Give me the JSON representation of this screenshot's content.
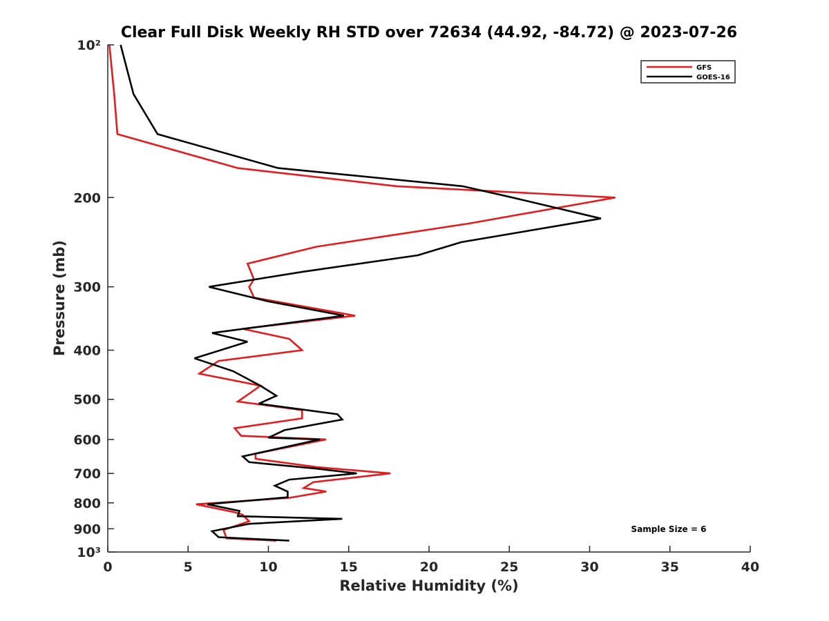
{
  "chart_data": {
    "type": "line",
    "title": "Clear Full Disk Weekly RH STD over 72634 (44.92, -84.72) @ 2023-07-26",
    "xlabel": "Relative Humidity (%)",
    "ylabel": "Pressure (mb)",
    "xlim": [
      0,
      40
    ],
    "ylim": [
      100,
      1000
    ],
    "yscale": "log",
    "y_reversed": true,
    "grid": false,
    "x_ticks": [
      0,
      5,
      10,
      15,
      20,
      25,
      30,
      35,
      40
    ],
    "x_tick_labels": [
      "0",
      "5",
      "10",
      "15",
      "20",
      "25",
      "30",
      "35",
      "40"
    ],
    "y_ticks": [
      100,
      200,
      300,
      400,
      500,
      600,
      700,
      800,
      900,
      1000
    ],
    "y_tick_labels": [
      "10²",
      "200",
      "300",
      "400",
      "500",
      "600",
      "700",
      "800",
      "900",
      "10³"
    ],
    "legend_position": "top-right",
    "annotation": "Sample Size = 6",
    "series": [
      {
        "name": "GFS",
        "color": "#e41a1c",
        "points": [
          [
            0.1,
            100
          ],
          [
            0.4,
            125
          ],
          [
            0.6,
            150
          ],
          [
            8.1,
            175
          ],
          [
            18.0,
            190
          ],
          [
            31.6,
            200
          ],
          [
            22.5,
            225
          ],
          [
            13.0,
            250
          ],
          [
            8.7,
            270
          ],
          [
            9.1,
            290
          ],
          [
            8.8,
            300
          ],
          [
            9.1,
            315
          ],
          [
            15.4,
            342
          ],
          [
            8.4,
            363
          ],
          [
            11.3,
            380
          ],
          [
            12.1,
            400
          ],
          [
            6.9,
            420
          ],
          [
            5.7,
            445
          ],
          [
            9.5,
            470
          ],
          [
            8.9,
            485
          ],
          [
            8.1,
            505
          ],
          [
            12.1,
            525
          ],
          [
            12.1,
            545
          ],
          [
            7.9,
            570
          ],
          [
            8.3,
            590
          ],
          [
            13.6,
            600
          ],
          [
            9.2,
            640
          ],
          [
            9.2,
            655
          ],
          [
            13.0,
            680
          ],
          [
            17.6,
            700
          ],
          [
            12.8,
            728
          ],
          [
            12.2,
            748
          ],
          [
            13.6,
            760
          ],
          [
            11.3,
            782
          ],
          [
            5.5,
            805
          ],
          [
            7.9,
            835
          ],
          [
            8.4,
            845
          ],
          [
            8.8,
            870
          ],
          [
            7.2,
            905
          ],
          [
            7.4,
            940
          ],
          [
            10.5,
            950
          ]
        ]
      },
      {
        "name": "GOES-16",
        "color": "#000000",
        "points": [
          [
            0.8,
            100
          ],
          [
            1.6,
            125
          ],
          [
            3.1,
            150
          ],
          [
            10.6,
            175
          ],
          [
            22.1,
            190
          ],
          [
            25.2,
            200
          ],
          [
            30.7,
            220
          ],
          [
            22.0,
            245
          ],
          [
            19.3,
            260
          ],
          [
            12.2,
            280
          ],
          [
            6.3,
            300
          ],
          [
            9.9,
            320
          ],
          [
            14.7,
            342
          ],
          [
            6.5,
            370
          ],
          [
            8.7,
            385
          ],
          [
            5.4,
            415
          ],
          [
            7.8,
            440
          ],
          [
            9.5,
            470
          ],
          [
            10.5,
            492
          ],
          [
            9.4,
            510
          ],
          [
            14.3,
            535
          ],
          [
            14.6,
            548
          ],
          [
            11.0,
            575
          ],
          [
            10.0,
            595
          ],
          [
            13.2,
            600
          ],
          [
            8.4,
            648
          ],
          [
            8.8,
            665
          ],
          [
            13.0,
            685
          ],
          [
            15.5,
            700
          ],
          [
            11.3,
            720
          ],
          [
            10.4,
            740
          ],
          [
            11.2,
            760
          ],
          [
            11.2,
            780
          ],
          [
            6.2,
            805
          ],
          [
            8.2,
            830
          ],
          [
            8.1,
            850
          ],
          [
            14.6,
            860
          ],
          [
            8.8,
            880
          ],
          [
            6.5,
            910
          ],
          [
            6.9,
            935
          ],
          [
            11.3,
            950
          ]
        ]
      }
    ]
  }
}
